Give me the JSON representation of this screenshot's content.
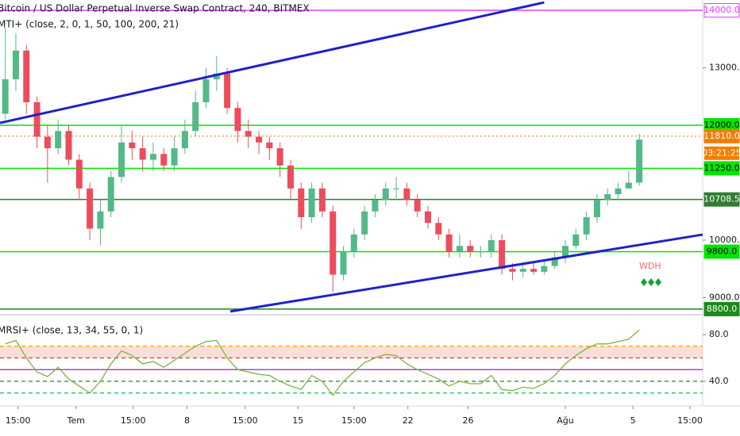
{
  "chart_data": [
    {
      "type": "candlestick",
      "title": "Bitcoin / US Dollar Perpetual Inverse Swap Contract, 240, BITMEX",
      "subtitle": "MTI+ (close, 2, 0, 1, 50, 100, 200, 21)",
      "open": [
        12200,
        12800,
        13300,
        12400,
        11800,
        11600,
        11900,
        11400,
        10900,
        10200,
        10500,
        11100,
        11700,
        11600,
        11400,
        11500,
        11300,
        11600,
        11900,
        12400,
        12800,
        12900,
        12300,
        11900,
        11800,
        11700,
        11600,
        11300,
        10900,
        10400,
        10900,
        10500,
        9400,
        9800,
        10100,
        10500,
        10700,
        10900,
        10900,
        10700,
        10500,
        10300,
        10100,
        9800,
        9900,
        9800,
        9800,
        10000,
        9500,
        9450,
        9500,
        9450,
        9550,
        9700,
        9900,
        10100,
        10400,
        10700,
        10800,
        10900,
        11000
      ],
      "high": [
        13700,
        13600,
        13400,
        12500,
        12000,
        12100,
        12000,
        11500,
        11000,
        10700,
        11200,
        12000,
        11900,
        11800,
        11700,
        11600,
        11800,
        12100,
        12600,
        13000,
        13200,
        13000,
        12400,
        12100,
        11900,
        11800,
        11700,
        11400,
        11000,
        11000,
        11000,
        10600,
        9900,
        10200,
        10600,
        10800,
        11000,
        11100,
        11000,
        10800,
        10600,
        10400,
        10200,
        10100,
        10000,
        9900,
        10100,
        10100,
        9600,
        9600,
        9600,
        9650,
        9800,
        10000,
        10200,
        10500,
        10800,
        10900,
        11000,
        11200,
        11850
      ],
      "low": [
        12100,
        12600,
        12200,
        11600,
        11000,
        11500,
        11300,
        10700,
        10000,
        9900,
        10400,
        11000,
        11400,
        11200,
        11200,
        11200,
        11200,
        11500,
        11800,
        12300,
        12600,
        12200,
        11700,
        11600,
        11500,
        11400,
        11100,
        10700,
        10200,
        10300,
        10400,
        9100,
        9300,
        9700,
        10000,
        10400,
        10600,
        10700,
        10600,
        10400,
        10200,
        10000,
        9700,
        9700,
        9700,
        9700,
        9700,
        9400,
        9300,
        9350,
        9400,
        9400,
        9500,
        9600,
        9850,
        10000,
        10300,
        10600,
        10700,
        10900,
        10950
      ],
      "close": [
        12800,
        13300,
        12400,
        11800,
        11600,
        11900,
        11400,
        10900,
        10200,
        10500,
        11100,
        11700,
        11600,
        11400,
        11500,
        11300,
        11600,
        11900,
        12400,
        12800,
        12900,
        12300,
        11900,
        11800,
        11700,
        11600,
        11300,
        10900,
        10400,
        10900,
        10500,
        9400,
        9800,
        10100,
        10500,
        10700,
        10900,
        10900,
        10700,
        10500,
        10300,
        10100,
        9800,
        9900,
        9800,
        9800,
        10000,
        9500,
        9450,
        9500,
        9450,
        9550,
        9700,
        9900,
        10100,
        10400,
        10700,
        10800,
        10900,
        11000,
        11750
      ],
      "up_color": "#53b987",
      "down_color": "#eb4d5c",
      "xlim": [
        -0.5,
        66
      ],
      "ylim": [
        8730,
        14180
      ],
      "xticks": [
        {
          "value": 1.2,
          "label": "15:00"
        },
        {
          "value": 6.7,
          "label": "Tem"
        },
        {
          "value": 12.1,
          "label": "15:00"
        },
        {
          "value": 17.2,
          "label": "8"
        },
        {
          "value": 22.7,
          "label": "15:00"
        },
        {
          "value": 27.7,
          "label": "15"
        },
        {
          "value": 33.0,
          "label": "15:00"
        },
        {
          "value": 38.1,
          "label": "22"
        },
        {
          "value": 43.8,
          "label": "26"
        },
        {
          "value": 53.0,
          "label": "Ağu"
        },
        {
          "value": 59.4,
          "label": "5"
        },
        {
          "value": 64.8,
          "label": "15:00"
        }
      ],
      "yticks": [
        {
          "value": 13000,
          "label": "13000.0"
        },
        {
          "value": 10000,
          "label": "10000.0"
        },
        {
          "value": 9000,
          "label": "9000.0"
        }
      ],
      "levels": [
        {
          "value": 14000,
          "label": "14000.0",
          "color": "#e040fb",
          "style": "solid"
        },
        {
          "value": 12000,
          "label": "12000.0",
          "color": "#00e600",
          "style": "solid"
        },
        {
          "value": 11810,
          "label": "11810.0",
          "color": "#f57c00",
          "style": "dotted"
        },
        {
          "value": 11250,
          "label": "11250.0",
          "color": "#00e600",
          "style": "solid"
        },
        {
          "value": 10708.5,
          "label": "10708.5",
          "color": "#2e7d32",
          "style": "solid"
        },
        {
          "value": 9800,
          "label": "9800.0",
          "color": "#00e600",
          "style": "solid"
        },
        {
          "value": 8800,
          "label": "8800.0",
          "color": "#1b8a1b",
          "style": "solid"
        }
      ],
      "countdown": "03:21:25",
      "trendlines": [
        {
          "color": "#1e22c8",
          "points": [
            [
              -0.5,
              12041
            ],
            [
              51.0,
              14138
            ]
          ]
        },
        {
          "color": "#1e22c8",
          "points": [
            [
              21.3,
              8759
            ],
            [
              66.0,
              10097
            ]
          ]
        }
      ],
      "annotation": "WDH"
    },
    {
      "type": "line",
      "title": "MRSI+ (close, 13, 34, 55, 0, 1)",
      "series": [
        {
          "color": "#7cb342",
          "values": [
            72,
            75,
            60,
            48,
            44,
            52,
            42,
            36,
            30,
            40,
            55,
            66,
            62,
            55,
            57,
            52,
            58,
            64,
            70,
            74,
            75,
            60,
            50,
            48,
            46,
            45,
            40,
            36,
            33,
            45,
            40,
            28,
            40,
            48,
            56,
            60,
            63,
            62,
            55,
            50,
            46,
            42,
            36,
            40,
            38,
            38,
            45,
            33,
            32,
            35,
            34,
            38,
            45,
            55,
            62,
            68,
            72,
            72,
            74,
            76,
            84
          ]
        }
      ],
      "ylim": [
        19,
        96.3
      ],
      "yticks": [
        {
          "value": 80,
          "label": "80.0"
        },
        {
          "value": 40,
          "label": "40.0"
        }
      ],
      "band": [
        60,
        70
      ],
      "levels": [
        {
          "value": 70,
          "color": "#ff9800",
          "style": "dashed"
        },
        {
          "value": 60,
          "color": "#e53935",
          "style": "dashed"
        },
        {
          "value": 50,
          "color": "#9c27b0",
          "style": "solid"
        },
        {
          "value": 40,
          "color": "#2e7d32",
          "style": "dashed"
        },
        {
          "value": 30,
          "color": "#00c853",
          "style": "dashed"
        }
      ]
    }
  ]
}
